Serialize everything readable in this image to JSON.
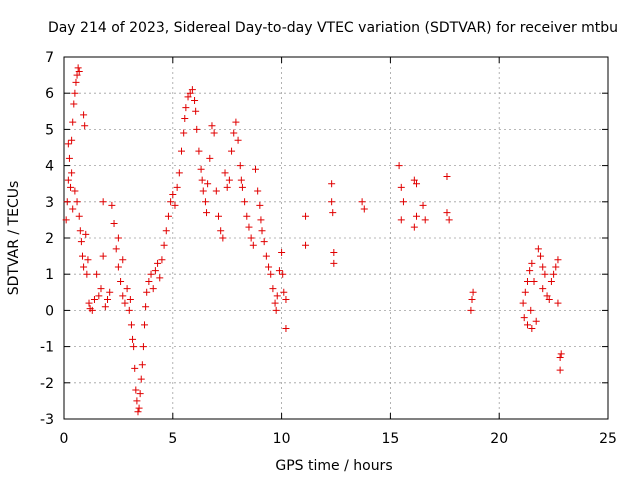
{
  "chart_data": {
    "type": "scatter",
    "title": "Day 214 of 2023, Sidereal Day-to-day VTEC variation (SDTVAR) for receiver mtbu",
    "xlabel": "GPS time / hours",
    "ylabel": "SDTVAR / TECUs",
    "xlim": [
      0,
      25
    ],
    "ylim": [
      -3,
      7
    ],
    "x_ticks": [
      0,
      5,
      10,
      15,
      20,
      25
    ],
    "y_ticks": [
      -3,
      -2,
      -1,
      0,
      1,
      2,
      3,
      4,
      5,
      6,
      7
    ],
    "x_tick_labels": [
      "0",
      "5",
      "10",
      "15",
      "20",
      "25"
    ],
    "y_tick_labels": [
      "-3",
      "-2",
      "-1",
      "0",
      "1",
      "2",
      "3",
      "4",
      "5",
      "6",
      "7"
    ],
    "grid": true,
    "marker": "+",
    "series_color": "#e00000",
    "series": [
      {
        "name": "SDTVAR",
        "points": [
          [
            0.1,
            2.5
          ],
          [
            0.15,
            3.0
          ],
          [
            0.2,
            3.6
          ],
          [
            0.2,
            4.6
          ],
          [
            0.25,
            4.2
          ],
          [
            0.3,
            3.4
          ],
          [
            0.35,
            3.8
          ],
          [
            0.35,
            4.7
          ],
          [
            0.4,
            2.8
          ],
          [
            0.4,
            5.2
          ],
          [
            0.45,
            5.7
          ],
          [
            0.5,
            6.0
          ],
          [
            0.5,
            3.3
          ],
          [
            0.55,
            6.3
          ],
          [
            0.6,
            6.5
          ],
          [
            0.6,
            3.0
          ],
          [
            0.65,
            6.7
          ],
          [
            0.7,
            6.6
          ],
          [
            0.7,
            2.6
          ],
          [
            0.75,
            2.2
          ],
          [
            0.8,
            1.9
          ],
          [
            0.85,
            1.5
          ],
          [
            0.9,
            1.2
          ],
          [
            0.9,
            5.4
          ],
          [
            0.95,
            5.1
          ],
          [
            1.0,
            2.1
          ],
          [
            1.05,
            1.0
          ],
          [
            1.1,
            1.4
          ],
          [
            1.15,
            0.2
          ],
          [
            1.2,
            0.05
          ],
          [
            1.3,
            0.0
          ],
          [
            1.4,
            0.3
          ],
          [
            1.5,
            1.0
          ],
          [
            1.6,
            0.4
          ],
          [
            1.7,
            0.6
          ],
          [
            1.8,
            1.5
          ],
          [
            1.8,
            3.0
          ],
          [
            1.9,
            0.1
          ],
          [
            2.0,
            0.3
          ],
          [
            2.1,
            0.5
          ],
          [
            2.2,
            2.9
          ],
          [
            2.3,
            2.4
          ],
          [
            2.4,
            1.7
          ],
          [
            2.5,
            2.0
          ],
          [
            2.5,
            1.2
          ],
          [
            2.6,
            0.8
          ],
          [
            2.7,
            0.4
          ],
          [
            2.7,
            1.4
          ],
          [
            2.8,
            0.2
          ],
          [
            2.9,
            0.6
          ],
          [
            3.0,
            0.0
          ],
          [
            3.05,
            0.3
          ],
          [
            3.1,
            -0.4
          ],
          [
            3.15,
            -0.8
          ],
          [
            3.2,
            -1.0
          ],
          [
            3.25,
            -1.6
          ],
          [
            3.3,
            -2.2
          ],
          [
            3.35,
            -2.5
          ],
          [
            3.4,
            -2.8
          ],
          [
            3.45,
            -2.7
          ],
          [
            3.5,
            -2.3
          ],
          [
            3.55,
            -1.9
          ],
          [
            3.6,
            -1.5
          ],
          [
            3.65,
            -1.0
          ],
          [
            3.7,
            -0.4
          ],
          [
            3.75,
            0.1
          ],
          [
            3.8,
            0.5
          ],
          [
            3.9,
            0.8
          ],
          [
            4.0,
            1.0
          ],
          [
            4.1,
            0.6
          ],
          [
            4.2,
            1.1
          ],
          [
            4.3,
            1.3
          ],
          [
            4.4,
            0.9
          ],
          [
            4.5,
            1.4
          ],
          [
            4.6,
            1.8
          ],
          [
            4.7,
            2.2
          ],
          [
            4.8,
            2.6
          ],
          [
            4.9,
            3.0
          ],
          [
            5.0,
            3.2
          ],
          [
            5.1,
            2.9
          ],
          [
            5.2,
            3.4
          ],
          [
            5.3,
            3.8
          ],
          [
            5.4,
            4.4
          ],
          [
            5.5,
            4.9
          ],
          [
            5.55,
            5.3
          ],
          [
            5.6,
            5.6
          ],
          [
            5.7,
            5.9
          ],
          [
            5.8,
            6.0
          ],
          [
            5.9,
            6.1
          ],
          [
            6.0,
            5.8
          ],
          [
            6.05,
            5.5
          ],
          [
            6.1,
            5.0
          ],
          [
            6.2,
            4.4
          ],
          [
            6.3,
            3.9
          ],
          [
            6.35,
            3.6
          ],
          [
            6.4,
            3.3
          ],
          [
            6.5,
            3.0
          ],
          [
            6.55,
            2.7
          ],
          [
            6.6,
            3.5
          ],
          [
            6.7,
            4.2
          ],
          [
            6.8,
            5.1
          ],
          [
            6.9,
            4.9
          ],
          [
            7.0,
            3.3
          ],
          [
            7.1,
            2.6
          ],
          [
            7.2,
            2.2
          ],
          [
            7.3,
            2.0
          ],
          [
            7.4,
            3.8
          ],
          [
            7.5,
            3.4
          ],
          [
            7.6,
            3.6
          ],
          [
            7.7,
            4.4
          ],
          [
            7.8,
            4.9
          ],
          [
            7.9,
            5.2
          ],
          [
            8.0,
            4.7
          ],
          [
            8.1,
            4.0
          ],
          [
            8.15,
            3.6
          ],
          [
            8.2,
            3.4
          ],
          [
            8.3,
            3.0
          ],
          [
            8.4,
            2.6
          ],
          [
            8.5,
            2.3
          ],
          [
            8.6,
            2.0
          ],
          [
            8.7,
            1.8
          ],
          [
            8.8,
            3.9
          ],
          [
            8.9,
            3.3
          ],
          [
            9.0,
            2.9
          ],
          [
            9.05,
            2.5
          ],
          [
            9.1,
            2.2
          ],
          [
            9.2,
            1.9
          ],
          [
            9.3,
            1.5
          ],
          [
            9.4,
            1.2
          ],
          [
            9.5,
            1.0
          ],
          [
            9.6,
            0.6
          ],
          [
            9.7,
            0.2
          ],
          [
            9.75,
            0.0
          ],
          [
            9.8,
            0.4
          ],
          [
            9.9,
            1.1
          ],
          [
            10.0,
            1.6
          ],
          [
            10.05,
            1.0
          ],
          [
            10.1,
            0.5
          ],
          [
            10.2,
            0.3
          ],
          [
            10.2,
            -0.5
          ],
          [
            11.1,
            2.6
          ],
          [
            11.1,
            1.8
          ],
          [
            12.3,
            3.5
          ],
          [
            12.3,
            3.0
          ],
          [
            12.35,
            2.7
          ],
          [
            12.4,
            1.6
          ],
          [
            12.4,
            1.3
          ],
          [
            13.7,
            3.0
          ],
          [
            13.8,
            2.8
          ],
          [
            15.4,
            4.0
          ],
          [
            15.5,
            3.4
          ],
          [
            15.5,
            2.5
          ],
          [
            15.6,
            3.0
          ],
          [
            16.1,
            3.6
          ],
          [
            16.2,
            3.5
          ],
          [
            16.1,
            2.3
          ],
          [
            16.2,
            2.6
          ],
          [
            16.5,
            2.9
          ],
          [
            16.6,
            2.5
          ],
          [
            17.6,
            3.7
          ],
          [
            17.6,
            2.7
          ],
          [
            17.7,
            2.5
          ],
          [
            18.7,
            0.0
          ],
          [
            18.75,
            0.3
          ],
          [
            18.8,
            0.5
          ],
          [
            21.1,
            0.2
          ],
          [
            21.15,
            -0.2
          ],
          [
            21.2,
            0.5
          ],
          [
            21.3,
            0.8
          ],
          [
            21.3,
            -0.4
          ],
          [
            21.4,
            1.1
          ],
          [
            21.45,
            0.0
          ],
          [
            21.5,
            1.3
          ],
          [
            21.5,
            -0.5
          ],
          [
            21.6,
            0.8
          ],
          [
            21.7,
            -0.3
          ],
          [
            21.8,
            1.7
          ],
          [
            21.9,
            1.5
          ],
          [
            22.0,
            1.2
          ],
          [
            22.0,
            0.6
          ],
          [
            22.1,
            1.0
          ],
          [
            22.2,
            0.4
          ],
          [
            22.3,
            0.3
          ],
          [
            22.4,
            0.8
          ],
          [
            22.5,
            1.0
          ],
          [
            22.6,
            1.2
          ],
          [
            22.7,
            1.4
          ],
          [
            22.7,
            0.2
          ],
          [
            22.8,
            -1.3
          ],
          [
            22.85,
            -1.2
          ],
          [
            22.8,
            -1.65
          ]
        ]
      }
    ]
  }
}
